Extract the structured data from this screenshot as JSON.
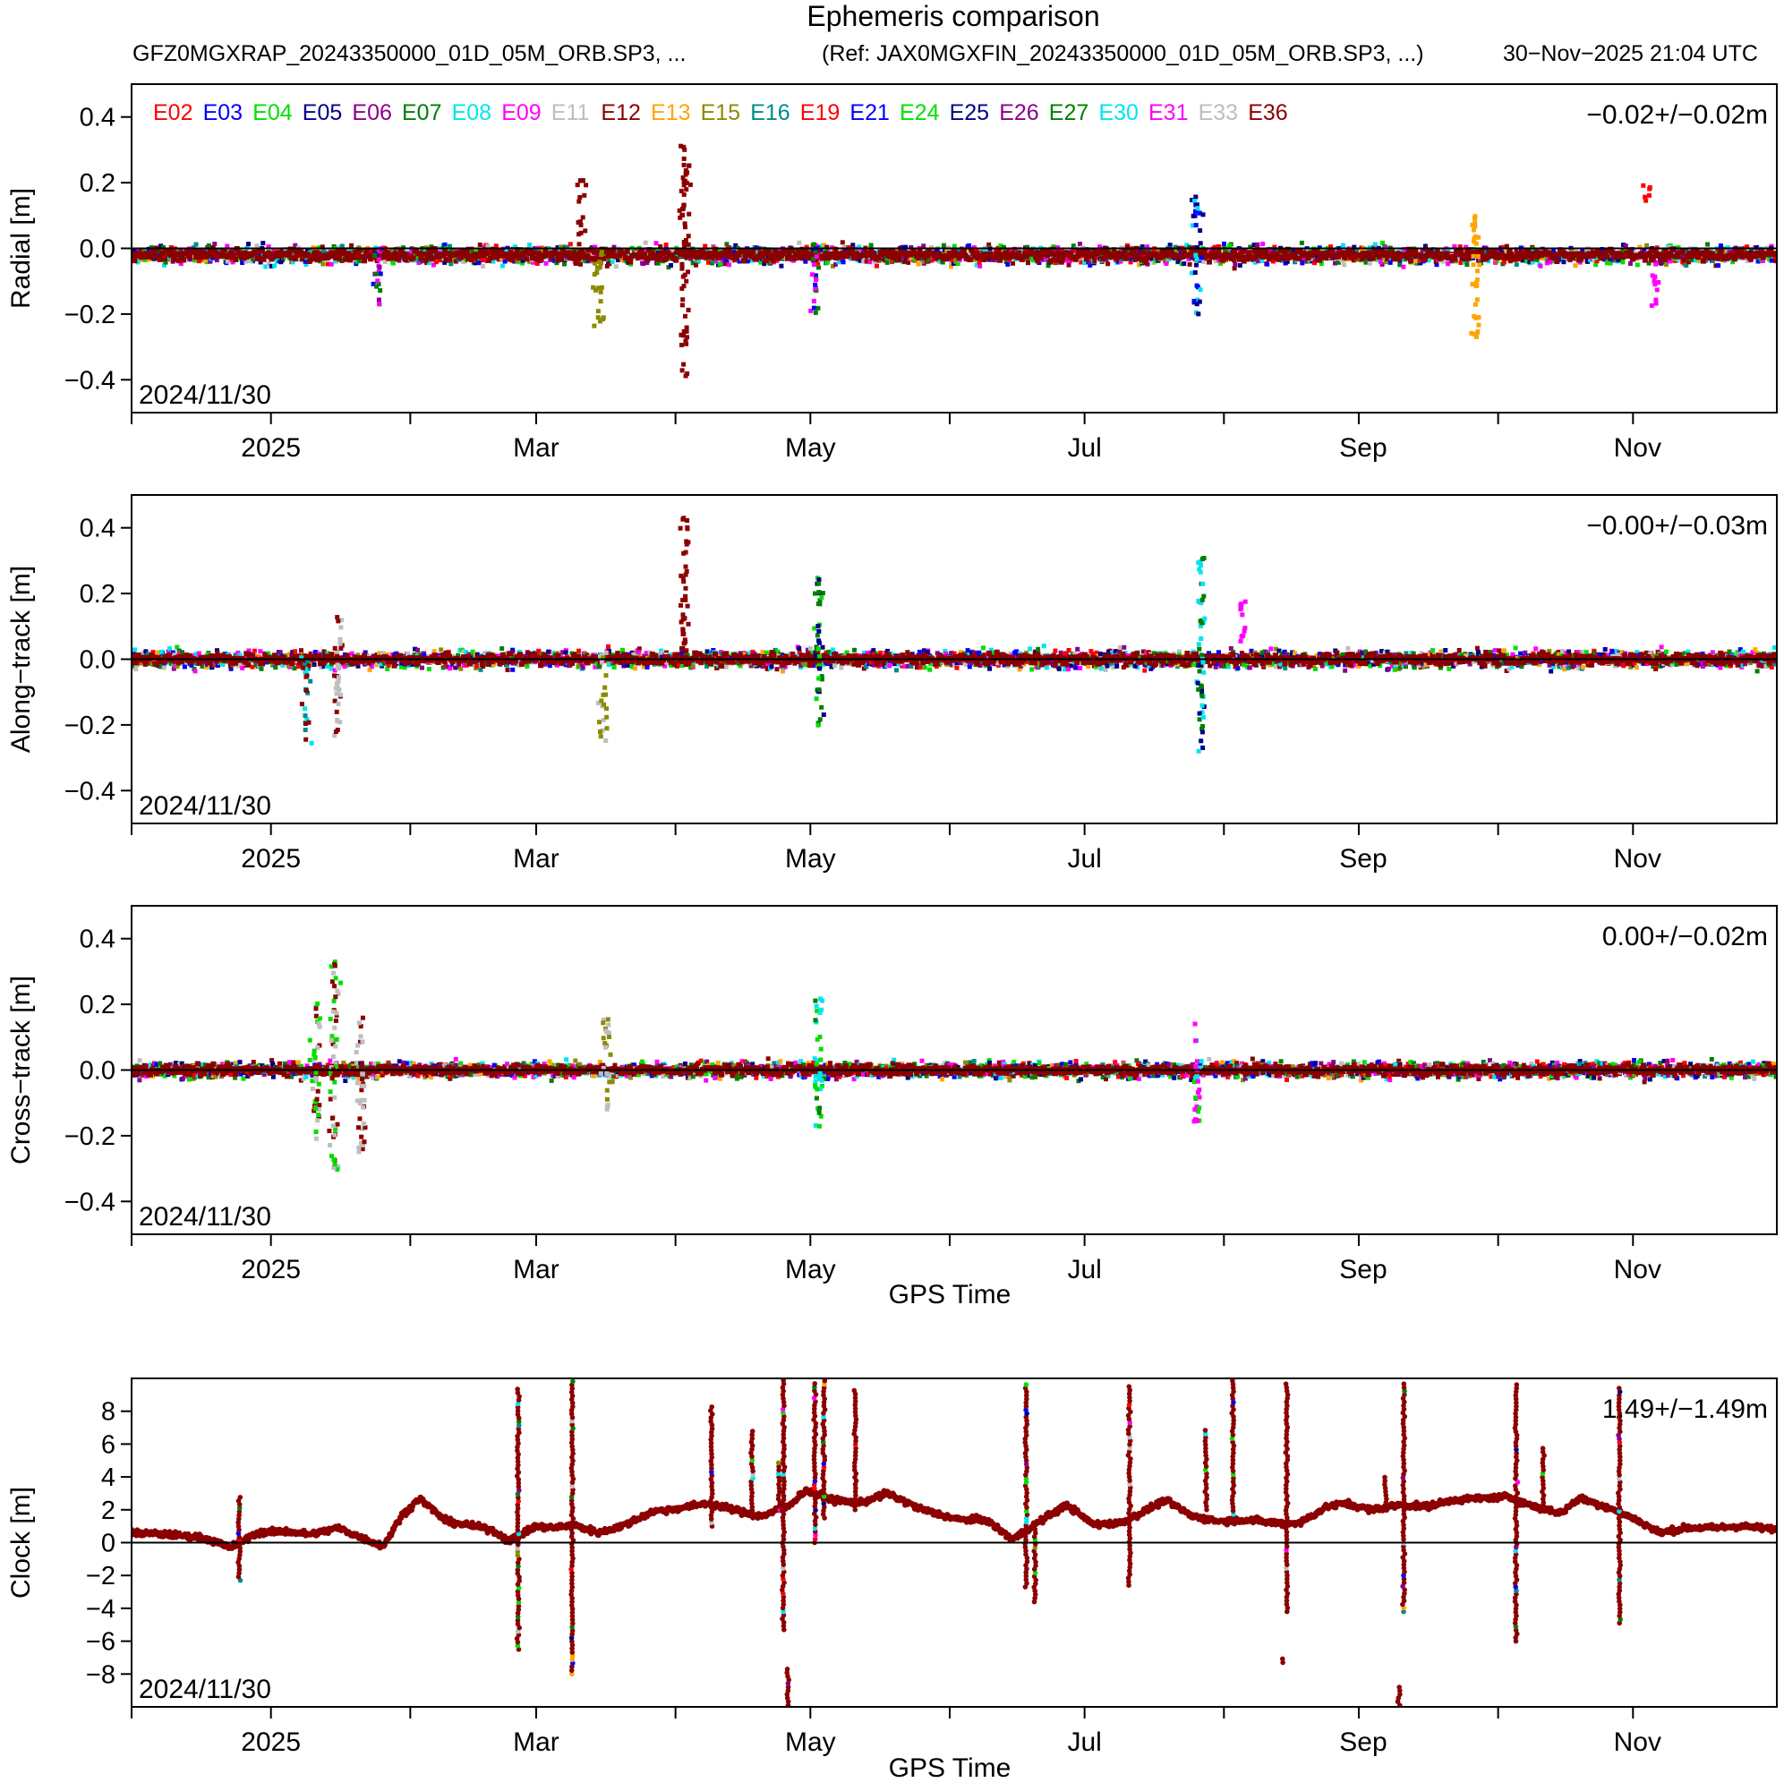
{
  "header": {
    "title": "Ephemeris comparison",
    "source_files": "GFZ0MGXRAP_20243350000_01D_05M_ORB.SP3, ...",
    "reference_files": "(Ref: JAX0MGXFIN_20243350000_01D_05M_ORB.SP3, ...)",
    "generated": "30−Nov−2025 21:04 UTC"
  },
  "legend": [
    {
      "label": "E02",
      "color": "#ff0000"
    },
    {
      "label": "E03",
      "color": "#0000ff"
    },
    {
      "label": "E04",
      "color": "#00e000"
    },
    {
      "label": "E05",
      "color": "#00008b"
    },
    {
      "label": "E06",
      "color": "#8b008b"
    },
    {
      "label": "E07",
      "color": "#008000"
    },
    {
      "label": "E08",
      "color": "#00e5ee"
    },
    {
      "label": "E09",
      "color": "#ff00ff"
    },
    {
      "label": "E11",
      "color": "#bebebe"
    },
    {
      "label": "E12",
      "color": "#8b0000"
    },
    {
      "label": "E13",
      "color": "#ffa500"
    },
    {
      "label": "E15",
      "color": "#8b8b00"
    },
    {
      "label": "E16",
      "color": "#008b8b"
    },
    {
      "label": "E19",
      "color": "#ff0000"
    },
    {
      "label": "E21",
      "color": "#0000ff"
    },
    {
      "label": "E24",
      "color": "#00e000"
    },
    {
      "label": "E25",
      "color": "#00008b"
    },
    {
      "label": "E26",
      "color": "#8b008b"
    },
    {
      "label": "E27",
      "color": "#008000"
    },
    {
      "label": "E30",
      "color": "#00e5ee"
    },
    {
      "label": "E31",
      "color": "#ff00ff"
    },
    {
      "label": "E33",
      "color": "#bebebe"
    },
    {
      "label": "E36",
      "color": "#8b0000"
    }
  ],
  "chart_data": [
    {
      "type": "scatter",
      "panel": "radial",
      "ylabel": "Radial [m]",
      "xlabel": "",
      "ylim": [
        -0.5,
        0.5
      ],
      "yticks": [
        -0.4,
        -0.2,
        0.0,
        0.2,
        0.4
      ],
      "ytick_labels": [
        "−0.4",
        "−0.2",
        "0.0",
        "0.2",
        "0.4"
      ],
      "xlim_days": [
        0,
        366
      ],
      "xticks_days": [
        0,
        31,
        62,
        90,
        121,
        151,
        182,
        212,
        243,
        273,
        304,
        334
      ],
      "xlabels": [
        {
          "day": 31,
          "label": "2025"
        },
        {
          "day": 90,
          "label": "Mar"
        },
        {
          "day": 151,
          "label": "May"
        },
        {
          "day": 212,
          "label": "Jul"
        },
        {
          "day": 274,
          "label": "Sep"
        },
        {
          "day": 335,
          "label": "Nov"
        }
      ],
      "start_date": "2024/11/30",
      "stats": "−0.02+/−0.02m",
      "band_center": -0.02,
      "band_halfwidth": 0.045,
      "excursions": [
        {
          "day": 55,
          "min": -0.2,
          "max": 0.02,
          "colors": [
            7,
            5,
            1,
            4
          ]
        },
        {
          "day": 100,
          "min": -0.05,
          "max": 0.21,
          "colors": [
            9,
            9,
            22
          ]
        },
        {
          "day": 104,
          "min": -0.24,
          "max": 0.0,
          "colors": [
            11
          ]
        },
        {
          "day": 123,
          "min": -0.39,
          "max": 0.33,
          "colors": [
            9
          ]
        },
        {
          "day": 152,
          "min": -0.2,
          "max": 0.04,
          "colors": [
            5,
            1,
            7
          ]
        },
        {
          "day": 237,
          "min": -0.2,
          "max": 0.17,
          "colors": [
            6,
            1,
            3
          ]
        },
        {
          "day": 299,
          "min": -0.28,
          "max": 0.1,
          "colors": [
            10
          ]
        },
        {
          "day": 337,
          "min": 0.14,
          "max": 0.2,
          "colors": [
            0
          ]
        },
        {
          "day": 339,
          "min": -0.18,
          "max": -0.08,
          "colors": [
            7
          ]
        }
      ]
    },
    {
      "type": "scatter",
      "panel": "along-track",
      "ylabel": "Along−track [m]",
      "xlabel": "",
      "ylim": [
        -0.5,
        0.5
      ],
      "yticks": [
        -0.4,
        -0.2,
        0.0,
        0.2,
        0.4
      ],
      "ytick_labels": [
        "−0.4",
        "−0.2",
        "0.0",
        "0.2",
        "0.4"
      ],
      "xlim_days": [
        0,
        366
      ],
      "xticks_days": [
        0,
        31,
        62,
        90,
        121,
        151,
        182,
        212,
        243,
        273,
        304,
        334
      ],
      "xlabels": [
        {
          "day": 31,
          "label": "2025"
        },
        {
          "day": 90,
          "label": "Mar"
        },
        {
          "day": 151,
          "label": "May"
        },
        {
          "day": 212,
          "label": "Jul"
        },
        {
          "day": 274,
          "label": "Sep"
        },
        {
          "day": 335,
          "label": "Nov"
        }
      ],
      "start_date": "2024/11/30",
      "stats": "−0.00+/−0.03m",
      "band_center": 0.0,
      "band_halfwidth": 0.045,
      "excursions": [
        {
          "day": 39,
          "min": -0.26,
          "max": 0.04,
          "colors": [
            12,
            6,
            9
          ]
        },
        {
          "day": 46,
          "min": -0.24,
          "max": 0.13,
          "colors": [
            9,
            8
          ]
        },
        {
          "day": 105,
          "min": -0.25,
          "max": 0.02,
          "colors": [
            8,
            11
          ]
        },
        {
          "day": 123,
          "min": -0.02,
          "max": 0.43,
          "colors": [
            9
          ]
        },
        {
          "day": 153,
          "min": -0.22,
          "max": 0.25,
          "colors": [
            3,
            5,
            2
          ]
        },
        {
          "day": 238,
          "min": -0.28,
          "max": 0.32,
          "colors": [
            5,
            6,
            3
          ]
        },
        {
          "day": 247,
          "min": 0.05,
          "max": 0.18,
          "colors": [
            7
          ]
        }
      ]
    },
    {
      "type": "scatter",
      "panel": "cross-track",
      "ylabel": "Cross−track [m]",
      "xlabel": "GPS Time",
      "ylim": [
        -0.5,
        0.5
      ],
      "yticks": [
        -0.4,
        -0.2,
        0.0,
        0.2,
        0.4
      ],
      "ytick_labels": [
        "−0.4",
        "−0.2",
        "0.0",
        "0.2",
        "0.4"
      ],
      "xlim_days": [
        0,
        366
      ],
      "xticks_days": [
        0,
        31,
        62,
        90,
        121,
        151,
        182,
        212,
        243,
        273,
        304,
        334
      ],
      "xlabels": [
        {
          "day": 31,
          "label": "2025"
        },
        {
          "day": 90,
          "label": "Mar"
        },
        {
          "day": 151,
          "label": "May"
        },
        {
          "day": 212,
          "label": "Jul"
        },
        {
          "day": 274,
          "label": "Sep"
        },
        {
          "day": 335,
          "label": "Nov"
        }
      ],
      "start_date": "2024/11/30",
      "stats": "0.00+/−0.02m",
      "band_center": 0.0,
      "band_halfwidth": 0.04,
      "excursions": [
        {
          "day": 41,
          "min": -0.21,
          "max": 0.21,
          "colors": [
            9,
            8,
            2
          ]
        },
        {
          "day": 45,
          "min": -0.33,
          "max": 0.33,
          "colors": [
            9,
            2,
            8
          ]
        },
        {
          "day": 51,
          "min": -0.25,
          "max": 0.17,
          "colors": [
            9,
            8
          ]
        },
        {
          "day": 106,
          "min": -0.13,
          "max": 0.16,
          "colors": [
            8,
            11
          ]
        },
        {
          "day": 153,
          "min": -0.19,
          "max": 0.22,
          "colors": [
            2,
            5,
            6
          ]
        },
        {
          "day": 237,
          "min": -0.16,
          "max": 0.15,
          "colors": [
            6,
            2,
            7
          ]
        }
      ]
    },
    {
      "type": "scatter",
      "panel": "clock",
      "ylabel": "Clock [m]",
      "xlabel": "GPS Time",
      "ylim": [
        -10,
        10
      ],
      "yticks": [
        -8,
        -6,
        -4,
        -2,
        0,
        2,
        4,
        6,
        8
      ],
      "ytick_labels": [
        "−8",
        "−6",
        "−4",
        "−2",
        "0",
        "2",
        "4",
        "6",
        "8"
      ],
      "xlim_days": [
        0,
        366
      ],
      "xticks_days": [
        0,
        31,
        62,
        90,
        121,
        151,
        182,
        212,
        243,
        273,
        304,
        334
      ],
      "xlabels": [
        {
          "day": 31,
          "label": "2025"
        },
        {
          "day": 90,
          "label": "Mar"
        },
        {
          "day": 151,
          "label": "May"
        },
        {
          "day": 212,
          "label": "Jul"
        },
        {
          "day": 274,
          "label": "Sep"
        },
        {
          "day": 335,
          "label": "Nov"
        }
      ],
      "start_date": "2024/11/30",
      "stats": "1.49+/−1.49m",
      "series": {
        "days": [
          0,
          8,
          16,
          22,
          28,
          34,
          40,
          46,
          52,
          56,
          60,
          64,
          70,
          76,
          80,
          84,
          90,
          94,
          98,
          104,
          110,
          116,
          122,
          128,
          134,
          140,
          146,
          150,
          156,
          162,
          168,
          176,
          184,
          190,
          196,
          202,
          208,
          214,
          220,
          226,
          230,
          236,
          242,
          248,
          254,
          260,
          266,
          270,
          276,
          282,
          288,
          294,
          300,
          306,
          312,
          318,
          322,
          328,
          334,
          340,
          346,
          352,
          358,
          366
        ],
        "values": [
          0.6,
          0.5,
          0.3,
          -0.3,
          0.6,
          0.7,
          0.5,
          0.9,
          0.2,
          -0.2,
          1.6,
          2.7,
          1.3,
          1.0,
          0.8,
          0.1,
          1.0,
          0.9,
          1.1,
          0.6,
          1.1,
          1.9,
          2.1,
          2.4,
          2.0,
          1.6,
          2.2,
          3.2,
          2.6,
          2.4,
          3.0,
          2.0,
          1.4,
          1.4,
          0.2,
          1.3,
          2.3,
          1.1,
          1.2,
          2.0,
          2.6,
          1.6,
          1.3,
          1.4,
          1.2,
          1.2,
          2.2,
          2.4,
          2.0,
          2.3,
          2.2,
          2.6,
          2.7,
          2.8,
          2.2,
          1.8,
          2.7,
          2.2,
          1.5,
          0.6,
          0.9,
          0.9,
          1.0,
          0.8
        ]
      },
      "spikes": [
        {
          "day": 24,
          "min": -2.3,
          "max": 2.9
        },
        {
          "day": 86,
          "min": -6.5,
          "max": 9.5
        },
        {
          "day": 98,
          "min": -8.0,
          "max": 9.9
        },
        {
          "day": 129,
          "min": 1.0,
          "max": 8.4
        },
        {
          "day": 138,
          "min": 1.5,
          "max": 6.8
        },
        {
          "day": 144,
          "min": 2.0,
          "max": 5.0
        },
        {
          "day": 145,
          "min": -5.3,
          "max": 9.9
        },
        {
          "day": 146,
          "min": -9.9,
          "max": -7.5
        },
        {
          "day": 152,
          "min": 0.0,
          "max": 9.9
        },
        {
          "day": 154,
          "min": 1.5,
          "max": 9.9
        },
        {
          "day": 161,
          "min": 2.0,
          "max": 9.4
        },
        {
          "day": 199,
          "min": -2.7,
          "max": 9.7
        },
        {
          "day": 201,
          "min": -3.6,
          "max": 1.0
        },
        {
          "day": 222,
          "min": -2.6,
          "max": 9.7
        },
        {
          "day": 239,
          "min": 2.0,
          "max": 6.9
        },
        {
          "day": 245,
          "min": 1.5,
          "max": 9.9
        },
        {
          "day": 256,
          "min": -7.3,
          "max": -7.0
        },
        {
          "day": 257,
          "min": -4.2,
          "max": 9.7
        },
        {
          "day": 279,
          "min": 2.0,
          "max": 4.2
        },
        {
          "day": 282,
          "min": -9.9,
          "max": -8.7
        },
        {
          "day": 283,
          "min": -4.2,
          "max": 9.8
        },
        {
          "day": 308,
          "min": -6.0,
          "max": 9.7
        },
        {
          "day": 314,
          "min": 2.0,
          "max": 5.8
        },
        {
          "day": 331,
          "min": -4.9,
          "max": 9.6
        }
      ]
    }
  ]
}
